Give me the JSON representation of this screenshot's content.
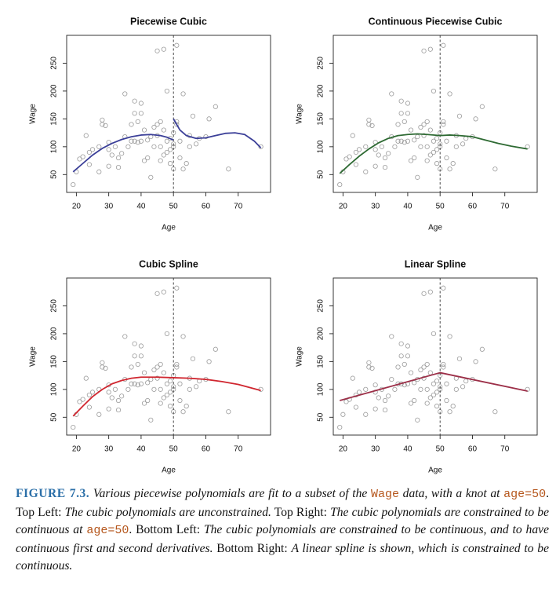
{
  "chart_data": [
    {
      "type": "scatter",
      "title": "Piecewise Cubic",
      "xlabel": "Age",
      "ylabel": "Wage",
      "xlim": [
        17,
        80
      ],
      "ylim": [
        18,
        300
      ],
      "xticks": [
        20,
        30,
        40,
        50,
        60,
        70
      ],
      "yticks": [
        50,
        100,
        150,
        200,
        250
      ],
      "knot": 50,
      "point_color": "#9a9a9a",
      "line_color": "#3b3f98",
      "points": {
        "x": [
          19,
          20,
          21,
          22,
          23,
          24,
          24,
          25,
          27,
          27,
          28,
          28,
          29,
          30,
          30,
          30,
          31,
          32,
          33,
          33,
          34,
          35,
          35,
          36,
          37,
          37,
          38,
          38,
          38,
          39,
          39,
          40,
          40,
          40,
          41,
          41,
          42,
          42,
          43,
          43,
          44,
          44,
          45,
          45,
          45,
          46,
          46,
          46,
          47,
          47,
          47,
          48,
          48,
          48,
          49,
          49,
          49,
          50,
          50,
          50,
          50,
          51,
          51,
          51,
          52,
          52,
          53,
          53,
          54,
          55,
          55,
          56,
          57,
          58,
          60,
          61,
          63,
          67,
          77
        ],
        "y": [
          32,
          55,
          78,
          82,
          120,
          68,
          90,
          95,
          55,
          100,
          140,
          148,
          138,
          65,
          95,
          108,
          85,
          100,
          63,
          80,
          88,
          195,
          118,
          100,
          110,
          140,
          110,
          182,
          160,
          108,
          145,
          110,
          178,
          160,
          130,
          75,
          112,
          80,
          45,
          118,
          135,
          100,
          140,
          272,
          120,
          75,
          100,
          145,
          85,
          130,
          275,
          200,
          110,
          90,
          95,
          70,
          115,
          105,
          60,
          100,
          125,
          282,
          140,
          145,
          80,
          110,
          195,
          60,
          70,
          100,
          120,
          155,
          105,
          115,
          118,
          150,
          172,
          60,
          100
        ]
      },
      "lines": [
        {
          "x": [
            19,
            22,
            25,
            28,
            31,
            34,
            37,
            40,
            43,
            46,
            48,
            50
          ],
          "y": [
            55,
            70,
            85,
            97,
            106,
            113,
            118,
            121,
            122,
            120,
            117,
            112
          ]
        },
        {
          "x": [
            50,
            52,
            54,
            57,
            60,
            63,
            66,
            69,
            72,
            75,
            77
          ],
          "y": [
            150,
            130,
            120,
            115,
            116,
            120,
            124,
            125,
            122,
            110,
            98
          ]
        }
      ]
    },
    {
      "type": "scatter",
      "title": "Continuous Piecewise Cubic",
      "xlabel": "Age",
      "ylabel": "Wage",
      "xlim": [
        17,
        80
      ],
      "ylim": [
        18,
        300
      ],
      "xticks": [
        20,
        30,
        40,
        50,
        60,
        70
      ],
      "yticks": [
        50,
        100,
        150,
        200,
        250
      ],
      "knot": 50,
      "point_color": "#9a9a9a",
      "line_color": "#2e6a33",
      "points": {
        "x": [
          19,
          20,
          21,
          22,
          23,
          24,
          24,
          25,
          27,
          27,
          28,
          28,
          29,
          30,
          30,
          30,
          31,
          32,
          33,
          33,
          34,
          35,
          35,
          36,
          37,
          37,
          38,
          38,
          38,
          39,
          39,
          40,
          40,
          40,
          41,
          41,
          42,
          42,
          43,
          43,
          44,
          44,
          45,
          45,
          45,
          46,
          46,
          46,
          47,
          47,
          47,
          48,
          48,
          48,
          49,
          49,
          49,
          50,
          50,
          50,
          50,
          51,
          51,
          51,
          52,
          52,
          53,
          53,
          54,
          55,
          55,
          56,
          57,
          58,
          60,
          61,
          63,
          67,
          77
        ],
        "y": [
          32,
          55,
          78,
          82,
          120,
          68,
          90,
          95,
          55,
          100,
          140,
          148,
          138,
          65,
          95,
          108,
          85,
          100,
          63,
          80,
          88,
          195,
          118,
          100,
          110,
          140,
          110,
          182,
          160,
          108,
          145,
          110,
          178,
          160,
          130,
          75,
          112,
          80,
          45,
          118,
          135,
          100,
          140,
          272,
          120,
          75,
          100,
          145,
          85,
          130,
          275,
          200,
          110,
          90,
          95,
          70,
          115,
          105,
          60,
          100,
          125,
          282,
          140,
          145,
          80,
          110,
          195,
          60,
          70,
          100,
          120,
          155,
          105,
          115,
          118,
          150,
          172,
          60,
          100
        ]
      },
      "lines": [
        {
          "x": [
            19,
            22,
            25,
            28,
            31,
            34,
            37,
            40,
            43,
            46,
            50,
            53,
            56,
            60,
            64,
            68,
            72,
            77
          ],
          "y": [
            52,
            68,
            83,
            96,
            107,
            115,
            120,
            122,
            123,
            122,
            120,
            121,
            120,
            118,
            112,
            106,
            101,
            96
          ]
        }
      ]
    },
    {
      "type": "scatter",
      "title": "Cubic Spline",
      "xlabel": "Age",
      "ylabel": "Wage",
      "xlim": [
        17,
        80
      ],
      "ylim": [
        18,
        300
      ],
      "xticks": [
        20,
        30,
        40,
        50,
        60,
        70
      ],
      "yticks": [
        50,
        100,
        150,
        200,
        250
      ],
      "knot": 50,
      "point_color": "#9a9a9a",
      "line_color": "#d0262f",
      "points": {
        "x": [
          19,
          20,
          21,
          22,
          23,
          24,
          24,
          25,
          27,
          27,
          28,
          28,
          29,
          30,
          30,
          30,
          31,
          32,
          33,
          33,
          34,
          35,
          35,
          36,
          37,
          37,
          38,
          38,
          38,
          39,
          39,
          40,
          40,
          40,
          41,
          41,
          42,
          42,
          43,
          43,
          44,
          44,
          45,
          45,
          45,
          46,
          46,
          46,
          47,
          47,
          47,
          48,
          48,
          48,
          49,
          49,
          49,
          50,
          50,
          50,
          50,
          51,
          51,
          51,
          52,
          52,
          53,
          53,
          54,
          55,
          55,
          56,
          57,
          58,
          60,
          61,
          63,
          67,
          77
        ],
        "y": [
          32,
          55,
          78,
          82,
          120,
          68,
          90,
          95,
          55,
          100,
          140,
          148,
          138,
          65,
          95,
          108,
          85,
          100,
          63,
          80,
          88,
          195,
          118,
          100,
          110,
          140,
          110,
          182,
          160,
          108,
          145,
          110,
          178,
          160,
          130,
          75,
          112,
          80,
          45,
          118,
          135,
          100,
          140,
          272,
          120,
          75,
          100,
          145,
          85,
          130,
          275,
          200,
          110,
          90,
          95,
          70,
          115,
          105,
          60,
          100,
          125,
          282,
          140,
          145,
          80,
          110,
          195,
          60,
          70,
          100,
          120,
          155,
          105,
          115,
          118,
          150,
          172,
          60,
          100
        ]
      },
      "lines": [
        {
          "x": [
            19,
            22,
            25,
            28,
            31,
            34,
            37,
            40,
            45,
            50,
            55,
            60,
            65,
            70,
            77
          ],
          "y": [
            52,
            70,
            87,
            100,
            110,
            116,
            120,
            122,
            122,
            121,
            120,
            118,
            114,
            109,
            98
          ]
        }
      ]
    },
    {
      "type": "scatter",
      "title": "Linear Spline",
      "xlabel": "Age",
      "ylabel": "Wage",
      "xlim": [
        17,
        80
      ],
      "ylim": [
        18,
        300
      ],
      "xticks": [
        20,
        30,
        40,
        50,
        60,
        70
      ],
      "yticks": [
        50,
        100,
        150,
        200,
        250
      ],
      "knot": 50,
      "point_color": "#9a9a9a",
      "line_color": "#9c2f48",
      "points": {
        "x": [
          19,
          20,
          21,
          22,
          23,
          24,
          24,
          25,
          27,
          27,
          28,
          28,
          29,
          30,
          30,
          30,
          31,
          32,
          33,
          33,
          34,
          35,
          35,
          36,
          37,
          37,
          38,
          38,
          38,
          39,
          39,
          40,
          40,
          40,
          41,
          41,
          42,
          42,
          43,
          43,
          44,
          44,
          45,
          45,
          45,
          46,
          46,
          46,
          47,
          47,
          47,
          48,
          48,
          48,
          49,
          49,
          49,
          50,
          50,
          50,
          50,
          51,
          51,
          51,
          52,
          52,
          53,
          53,
          54,
          55,
          55,
          56,
          57,
          58,
          60,
          61,
          63,
          67,
          77
        ],
        "y": [
          32,
          55,
          78,
          82,
          120,
          68,
          90,
          95,
          55,
          100,
          140,
          148,
          138,
          65,
          95,
          108,
          85,
          100,
          63,
          80,
          88,
          195,
          118,
          100,
          110,
          140,
          110,
          182,
          160,
          108,
          145,
          110,
          178,
          160,
          130,
          75,
          112,
          80,
          45,
          118,
          135,
          100,
          140,
          272,
          120,
          75,
          100,
          145,
          85,
          130,
          275,
          200,
          110,
          90,
          95,
          70,
          115,
          105,
          60,
          100,
          125,
          282,
          140,
          145,
          80,
          110,
          195,
          60,
          70,
          100,
          120,
          155,
          105,
          115,
          118,
          150,
          172,
          60,
          100
        ]
      },
      "lines": [
        {
          "x": [
            19,
            50,
            77
          ],
          "y": [
            80,
            130,
            97
          ]
        }
      ]
    }
  ],
  "caption": [
    {
      "style": "label",
      "text": "FIGURE 7.3."
    },
    {
      "style": "italic",
      "text": " Various piecewise polynomials are fit to a subset of the "
    },
    {
      "style": "code",
      "text": "Wage"
    },
    {
      "style": "italic",
      "text": " data, with a knot at "
    },
    {
      "style": "code",
      "text": "age=50"
    },
    {
      "style": "roman",
      "text": ". Top Left: "
    },
    {
      "style": "italic",
      "text": "The cubic polynomials are unconstrained."
    },
    {
      "style": "roman",
      "text": " Top Right: "
    },
    {
      "style": "italic",
      "text": "The cubic polynomials are constrained to be continuous at "
    },
    {
      "style": "code",
      "text": "age=50"
    },
    {
      "style": "roman",
      "text": ". Bottom Left: "
    },
    {
      "style": "italic",
      "text": "The cubic polynomials are constrained to be continuous, and to have continuous first and second derivatives."
    },
    {
      "style": "roman",
      "text": " Bottom Right: "
    },
    {
      "style": "italic",
      "text": "A linear spline is shown, which is constrained to be continuous."
    }
  ]
}
